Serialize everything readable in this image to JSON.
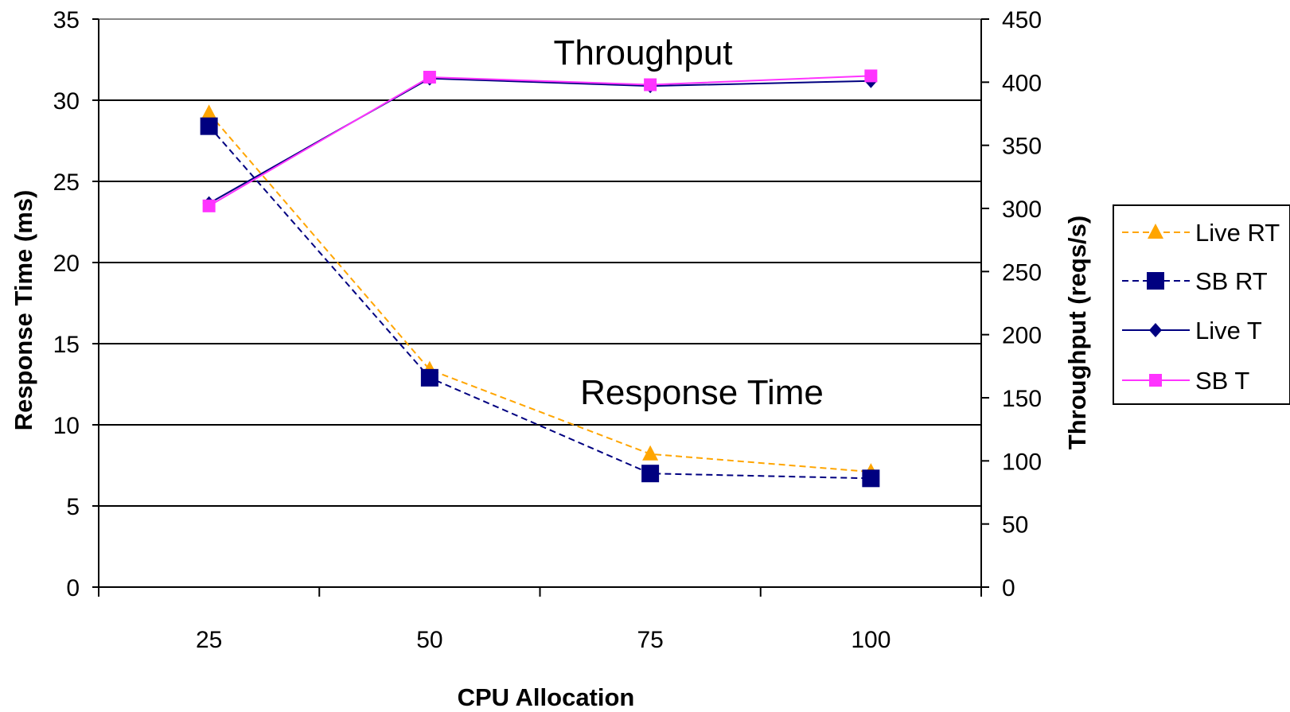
{
  "chart_data": {
    "type": "line",
    "categories": [
      "25",
      "50",
      "75",
      "100"
    ],
    "xlabel": "CPU Allocation",
    "ylabel": "Response Time (ms)",
    "y2label": "Throughput (reqs/s)",
    "ylim": [
      0,
      35
    ],
    "y_ticks": [
      0,
      5,
      10,
      15,
      20,
      25,
      30,
      35
    ],
    "y2lim": [
      0,
      450
    ],
    "y2_ticks": [
      0,
      50,
      100,
      150,
      200,
      250,
      300,
      350,
      400,
      450
    ],
    "grid": true,
    "legend_position": "right",
    "annotations": [
      "Throughput",
      "Response Time"
    ],
    "series": [
      {
        "name": "Live RT",
        "axis": "left",
        "values": [
          29.2,
          13.4,
          8.2,
          7.1
        ],
        "color": "#FFA500",
        "dash": true,
        "marker": "triangle"
      },
      {
        "name": "SB RT",
        "axis": "left",
        "values": [
          28.4,
          12.9,
          7.0,
          6.7
        ],
        "color": "#000080",
        "dash": true,
        "marker": "square"
      },
      {
        "name": "Live T",
        "axis": "right",
        "values": [
          304,
          403,
          397,
          401
        ],
        "color": "#000080",
        "dash": false,
        "marker": "diamond"
      },
      {
        "name": "SB T",
        "axis": "right",
        "values": [
          302,
          404,
          398,
          405
        ],
        "color": "#FF33FF",
        "dash": false,
        "marker": "square-small"
      }
    ]
  }
}
